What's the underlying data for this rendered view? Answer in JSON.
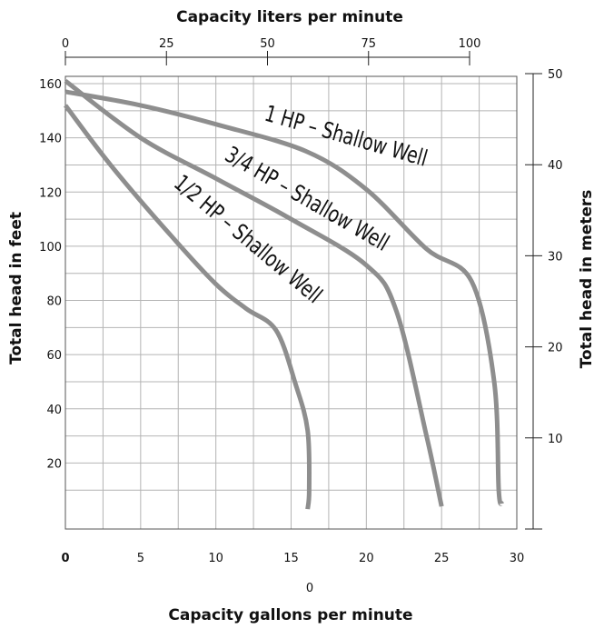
{
  "chart_data": {
    "type": "line",
    "title": "Capacity liters per minute",
    "xlabel": "Capacity gallons per minute",
    "ylabel": "Total head in feet",
    "y2label": "Total head in meters",
    "xlim": [
      0,
      30
    ],
    "ylim": [
      0,
      165
    ],
    "x_ticks": [
      "0",
      "5",
      "10",
      "15",
      "20",
      "25",
      "30"
    ],
    "x_extra_label": "0",
    "y_ticks": [
      "20",
      "40",
      "60",
      "80",
      "100",
      "120",
      "140",
      "160"
    ],
    "top_ticks": [
      "0",
      "25",
      "50",
      "75",
      "100"
    ],
    "right_ticks": [
      "10",
      "20",
      "30",
      "40",
      "50"
    ],
    "grid": true,
    "series": [
      {
        "name": "1 HP – Shallow Well",
        "x": [
          0,
          5,
          10,
          16,
          20,
          24,
          27,
          28.5,
          28.8,
          29
        ],
        "y": [
          157,
          152,
          145,
          135,
          121,
          99,
          87,
          50,
          10,
          5
        ]
      },
      {
        "name": "3/4 HP – Shallow Well",
        "x": [
          0,
          5,
          10,
          15,
          20,
          22,
          24,
          25
        ],
        "y": [
          161,
          140,
          125,
          110,
          93,
          76,
          30,
          4
        ]
      },
      {
        "name": "1/2 HP – Shallow Well",
        "x": [
          0,
          3,
          7,
          10,
          12,
          14,
          15.3,
          16.1,
          16.2,
          16.1
        ],
        "y": [
          152,
          130,
          104,
          86,
          77,
          69,
          49,
          32,
          10,
          3
        ]
      }
    ]
  }
}
